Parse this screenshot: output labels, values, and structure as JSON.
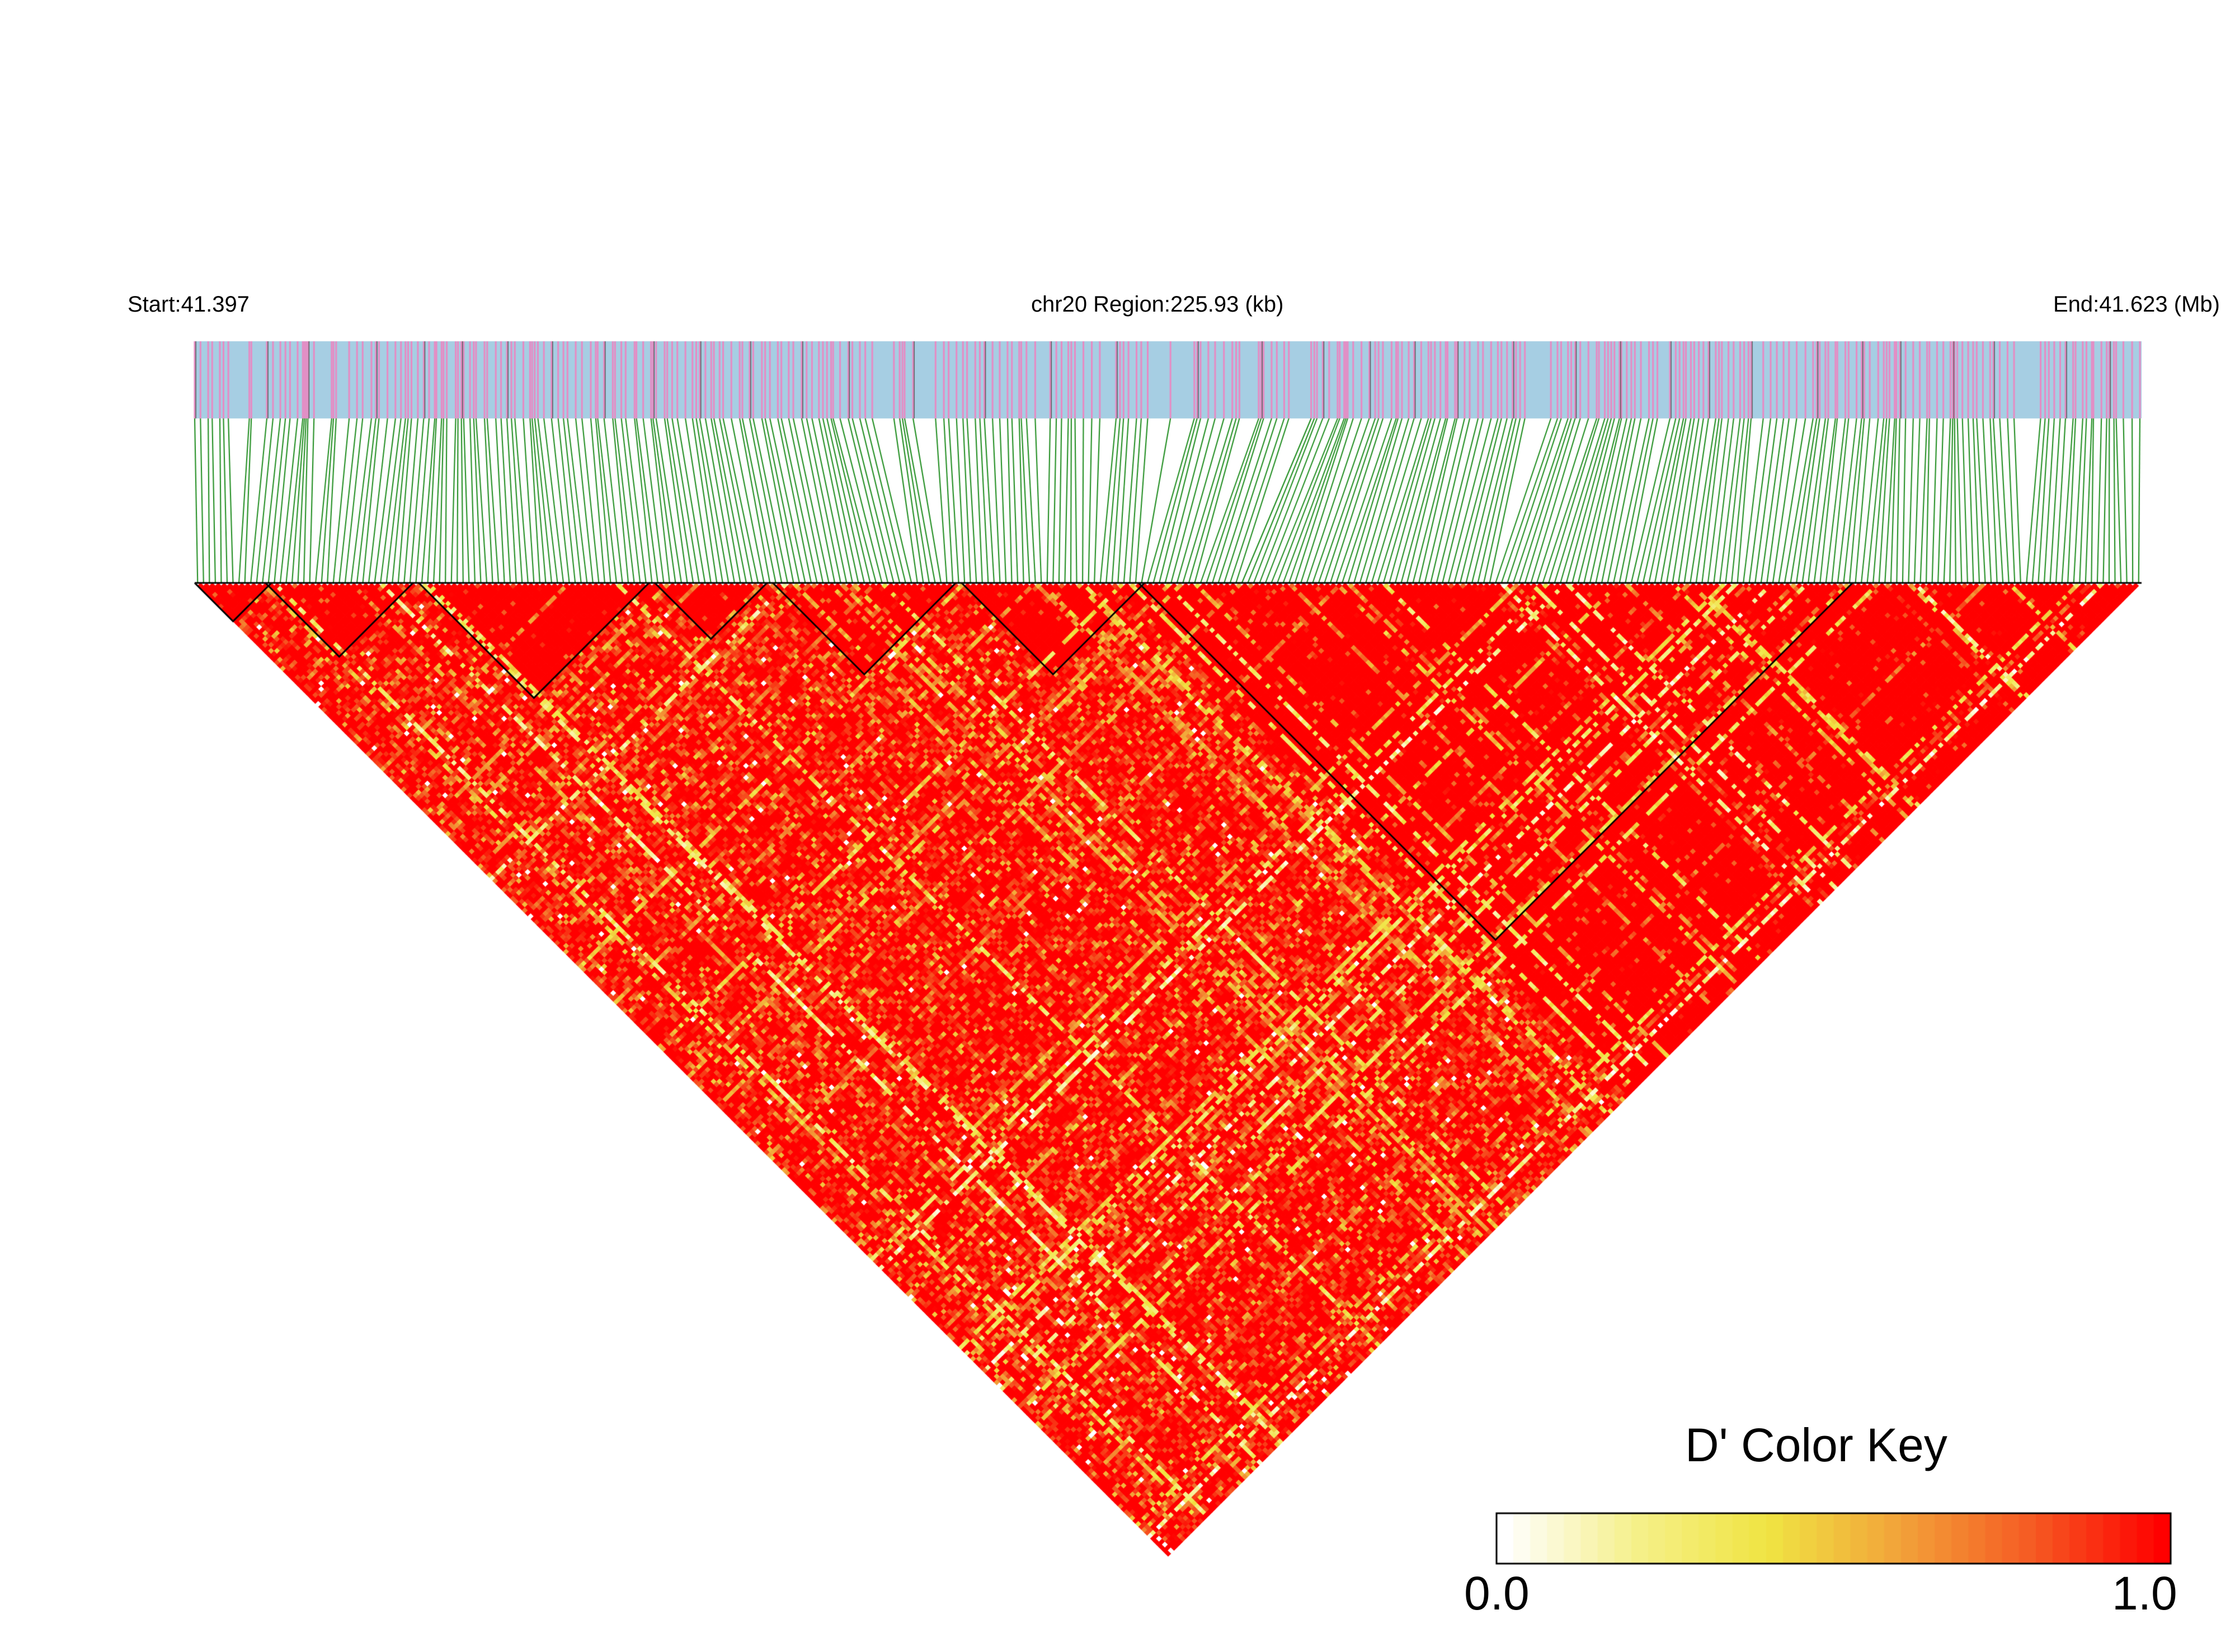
{
  "chart_data": {
    "type": "heatmap",
    "subtype": "LD block triangle (pairwise D' between SNPs)",
    "header": {
      "start_label": "Start:41.397",
      "region_label": "chr20 Region:225.93 (kb)",
      "end_label": "End:41.623 (Mb)"
    },
    "chromosome": "chr20",
    "region_start_mb": 41.397,
    "region_end_mb": 41.623,
    "region_size_kb": 225.93,
    "snp_count_approx": 330,
    "statistic": "D'",
    "value_range": [
      0.0,
      1.0
    ],
    "dominant_value_approx": 1.0,
    "blocks_snp_index_ranges": [
      [
        0,
        12
      ],
      [
        12,
        36
      ],
      [
        38,
        76
      ],
      [
        78,
        96
      ],
      [
        98,
        128
      ],
      [
        130,
        160
      ],
      [
        160,
        280
      ]
    ],
    "colors": {
      "track_background": "#a6cee3",
      "snp_tick": "#e78ac3",
      "connector_lines": "#1a8a1a",
      "block_outline": "#000000",
      "high": "#ff0000",
      "mid": "#f0e442",
      "low": "#ffffff"
    },
    "color_key": {
      "title": "D' Color Key",
      "min_label": "0.0",
      "max_label": "1.0",
      "gradient": [
        "#ffffff",
        "#f5f08a",
        "#f0e442",
        "#f2a33a",
        "#f55b23",
        "#ff0000"
      ]
    }
  }
}
